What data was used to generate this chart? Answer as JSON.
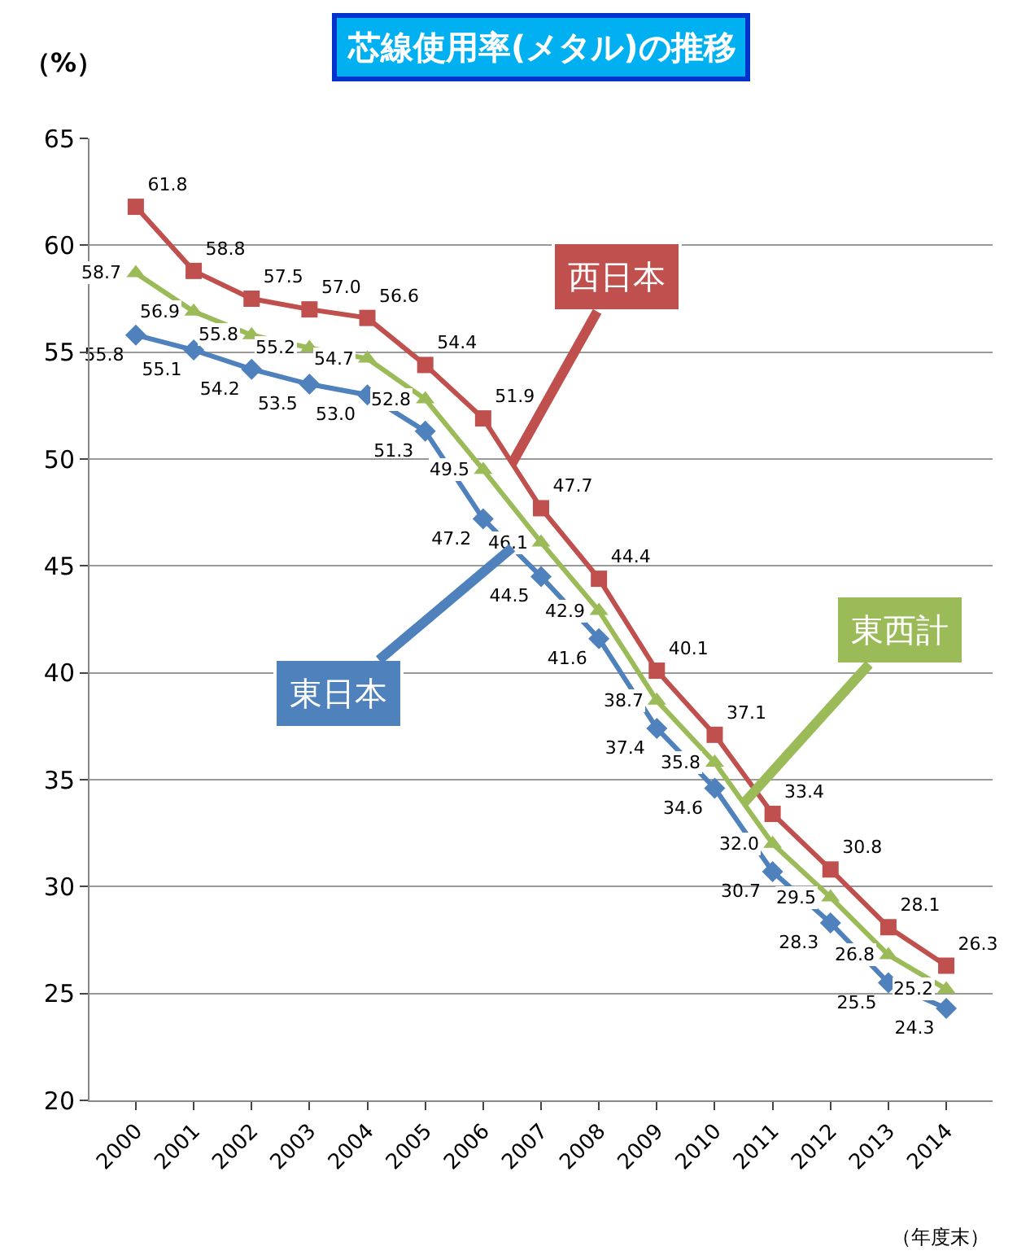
{
  "chart_data": {
    "type": "line",
    "title": "芯線使用率(メタル)の推移",
    "ylabel": "（%）",
    "xlabel": "（年度末）",
    "categories": [
      "2000",
      "2001",
      "2002",
      "2003",
      "2004",
      "2005",
      "2006",
      "2007",
      "2008",
      "2009",
      "2010",
      "2011",
      "2012",
      "2013",
      "2014"
    ],
    "ylim": [
      20,
      65
    ],
    "yticks": [
      20,
      25,
      30,
      35,
      40,
      45,
      50,
      55,
      60,
      65
    ],
    "grid": "y",
    "legend": false,
    "series": [
      {
        "name": "西日本",
        "color": "#c0504d",
        "marker": "square",
        "values": [
          61.8,
          58.8,
          57.5,
          57.0,
          56.6,
          54.4,
          51.9,
          47.7,
          44.4,
          40.1,
          37.1,
          33.4,
          30.8,
          28.1,
          26.3
        ],
        "value_labels": [
          "61.8",
          "58.8",
          "57.5",
          "57.0",
          "56.6",
          "54.4",
          "51.9",
          "47.7",
          "44.4",
          "40.1",
          "37.1",
          "33.4",
          "30.8",
          "28.1",
          "26.3"
        ]
      },
      {
        "name": "東西計",
        "color": "#9bbb59",
        "marker": "triangle",
        "values": [
          58.7,
          56.9,
          55.8,
          55.2,
          54.7,
          52.8,
          49.5,
          46.1,
          42.9,
          38.7,
          35.8,
          32.0,
          29.5,
          26.8,
          25.2
        ],
        "value_labels": [
          "58.7",
          "56.9",
          "55.8",
          "55.2",
          "54.7",
          "52.8",
          "49.5",
          "46.1",
          "42.9",
          "38.7",
          "35.8",
          "32.0",
          "29.5",
          "26.8",
          "25.2"
        ]
      },
      {
        "name": "東日本",
        "color": "#4f81bd",
        "marker": "diamond",
        "values": [
          55.8,
          55.1,
          54.2,
          53.5,
          53.0,
          51.3,
          47.2,
          44.5,
          41.6,
          37.4,
          34.6,
          30.7,
          28.3,
          25.5,
          24.3
        ],
        "value_labels": [
          "55.8",
          "55.1",
          "54.2",
          "53.5",
          "53.0",
          "51.3",
          "47.2",
          "44.5",
          "41.6",
          "37.4",
          "34.6",
          "30.7",
          "28.3",
          "25.5",
          "24.3"
        ]
      }
    ]
  }
}
